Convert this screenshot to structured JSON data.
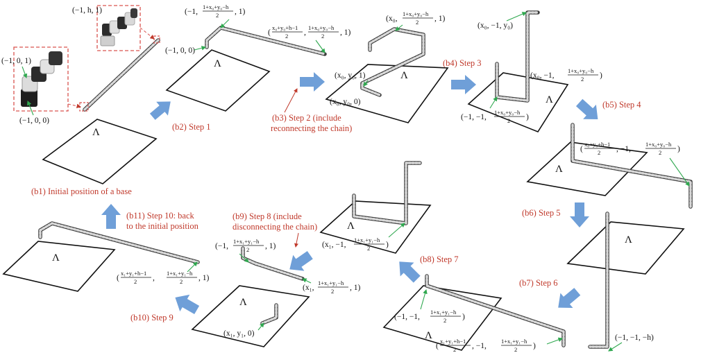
{
  "labels": {
    "b1": "(b1) Initial position of a base",
    "b2": "(b2) Step 1",
    "b3a": "(b3) Step 2 (include",
    "b3b": "reconnecting the chain)",
    "b4": "(b4) Step 3",
    "b5": "(b5) Step 4",
    "b6": "(b6) Step 5",
    "b7": "(b7) Step 6",
    "b8": "(b8) Step 7",
    "b9a": "(b9) Step 8 (include",
    "b9b": "disconnecting the chain)",
    "b10": "(b10) Step 9",
    "b11a": "(b11) Step 10: back",
    "b11b": "to the initial position"
  },
  "lambda": "Λ",
  "coords": {
    "c_m1_h_1": "(−1, h, 1)",
    "c_m1_0_1": "(−1, 0, 1)",
    "c_m1_0_0": "(−1, 0, 0)",
    "c_m1_0_0_b2": "(−1, 0, 0)",
    "b2_top_pre": "(−1,",
    "b2_top_num": "1+x₀+y₀−h",
    "b2_top_den": "2",
    "b2_top_post": ", 1)",
    "b2_right_pre": "(",
    "b2_right_num1": "x₀+y₀+h−1",
    "b2_right_den1": "2",
    "b2_right_mid": ",",
    "b2_right_num2": "1+x₀+y₀−h",
    "b2_right_den2": "2",
    "b2_right_post": ", 1)",
    "b3_top_pre": "(x₀,",
    "b3_top_num": "1+x₀+y₀−h",
    "b3_top_den": "2",
    "b3_top_post": ", 1)",
    "b3_mid": "(x₀, y₀, 1)",
    "b3_low": "(x₀, y₀, 0)",
    "b4_top": "(x₀, −1, y₀)",
    "b4_right_pre": "(x₀, −1,",
    "b4_right_num": "1+x₀+y₀−h",
    "b4_right_den": "2",
    "b4_right_post": ")",
    "b4_low_pre": "(−1, −1,",
    "b4_low_num": "1+x₀+y₀−h",
    "b4_low_den": "2",
    "b4_low_post": ")",
    "b5_pre": "(",
    "b5_num1": "x₀+y₀+h−1",
    "b5_den1": "2",
    "b5_mid": ", −1,",
    "b5_num2": "1+x₀+y₀−h",
    "b5_den2": "2",
    "b5_post": ")",
    "b6_low": "(−1, −1, −h)",
    "b7_left_pre": "(−1, −1,",
    "b7_left_num": "1+x₁+y₁−h",
    "b7_left_den": "2",
    "b7_left_post": ")",
    "b7_bot_pre": "(",
    "b7_bot_num1": "x₁+y₁+h−1",
    "b7_bot_den1": "2",
    "b7_bot_mid": ", −1,",
    "b7_bot_num2": "1+x₁+y₁−h",
    "b7_bot_den2": "2",
    "b7_bot_post": ")",
    "b8_pre": "(x₁, −1,",
    "b8_num": "1+x₁+y₁−h",
    "b8_den": "2",
    "b8_post": ")",
    "b9_top_pre": "(−1,",
    "b9_top_num": "1+x₁+y₁−h",
    "b9_top_den": "2",
    "b9_top_post": ", 1)",
    "b9_right_pre": "(x₁,",
    "b9_right_num": "1+x₁+y₁−h",
    "b9_right_den": "2",
    "b9_right_post": ", 1)",
    "b9_low": "(x₁, y₁, 0)",
    "b10_pre": "(",
    "b10_num1": "x₁+y₁+h−1",
    "b10_den1": "2",
    "b10_mid": ",",
    "b10_num2": "1+x₁+y₁−h",
    "b10_den2": "2",
    "b10_post": ", 1)"
  },
  "colors": {
    "step_label": "#c0392b",
    "arrow": "#6f9fd8",
    "pointer": "#2fa84f"
  }
}
